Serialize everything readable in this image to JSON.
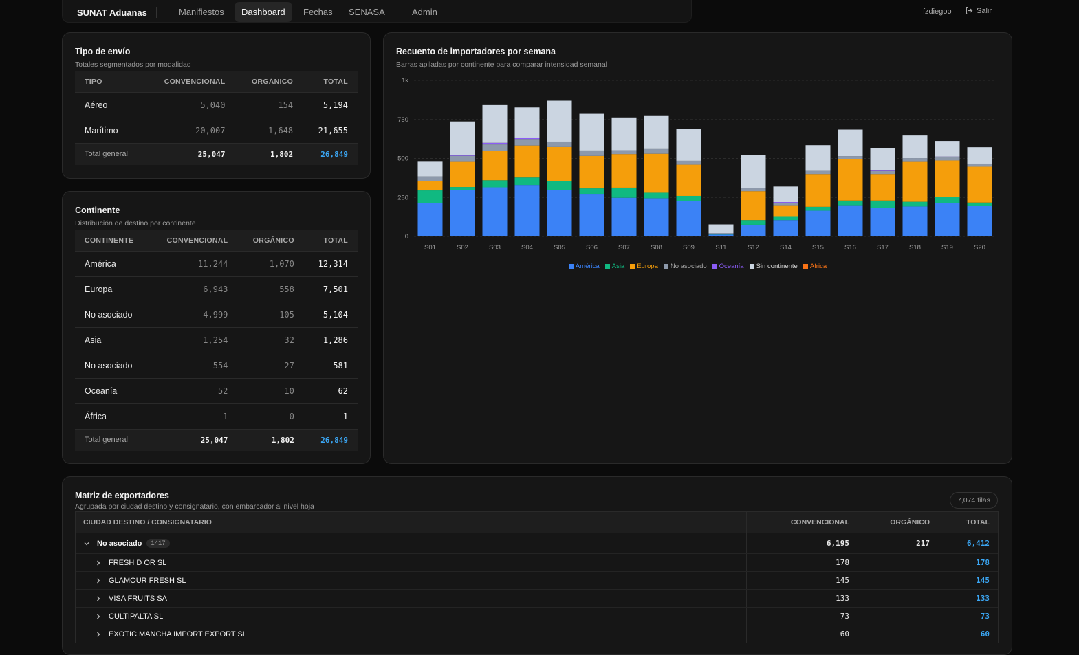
{
  "nav": {
    "brand": "SUNAT Aduanas",
    "items": [
      "Manifiestos",
      "Dashboard",
      "Fechas",
      "SENASA",
      "Admin"
    ],
    "active": "Dashboard",
    "user": "fzdiegoo",
    "logout": "Salir"
  },
  "shipping": {
    "title": "Tipo de envío",
    "subtitle": "Totales segmentados por modalidad",
    "headers": [
      "TIPO",
      "CONVENCIONAL",
      "ORGÁNICO",
      "TOTAL"
    ],
    "rows": [
      [
        "Aéreo",
        "5,040",
        "154",
        "5,194"
      ],
      [
        "Marítimo",
        "20,007",
        "1,648",
        "21,655"
      ]
    ],
    "total": [
      "Total general",
      "25,047",
      "1,802",
      "26,849"
    ]
  },
  "continent": {
    "title": "Continente",
    "subtitle": "Distribución de destino por continente",
    "headers": [
      "CONTINENTE",
      "CONVENCIONAL",
      "ORGÁNICO",
      "TOTAL"
    ],
    "rows": [
      [
        "América",
        "11,244",
        "1,070",
        "12,314"
      ],
      [
        "Europa",
        "6,943",
        "558",
        "7,501"
      ],
      [
        "No asociado",
        "4,999",
        "105",
        "5,104"
      ],
      [
        "Asia",
        "1,254",
        "32",
        "1,286"
      ],
      [
        "No asociado",
        "554",
        "27",
        "581"
      ],
      [
        "Oceanía",
        "52",
        "10",
        "62"
      ],
      [
        "África",
        "1",
        "0",
        "1"
      ]
    ],
    "total": [
      "Total general",
      "25,047",
      "1,802",
      "26,849"
    ]
  },
  "chart": {
    "title": "Recuento de importadores por semana",
    "subtitle": "Barras apiladas por continente para comparar intensidad semanal"
  },
  "chart_data": {
    "type": "bar",
    "stacked": true,
    "categories": [
      "S01",
      "S02",
      "S03",
      "S04",
      "S05",
      "S06",
      "S07",
      "S08",
      "S09",
      "S11",
      "S12",
      "S14",
      "S15",
      "S16",
      "S17",
      "S18",
      "S19",
      "S20"
    ],
    "ylim": [
      0,
      1000
    ],
    "yticks": [
      "0",
      "250",
      "500",
      "750",
      "1k"
    ],
    "grid": true,
    "legend_position": "bottom",
    "series": [
      {
        "name": "América",
        "color": "#3b82f6",
        "values": [
          215,
          297,
          315,
          330,
          298,
          273,
          248,
          245,
          225,
          12,
          75,
          105,
          165,
          200,
          185,
          192,
          212,
          197
        ]
      },
      {
        "name": "Asia",
        "color": "#10b981",
        "values": [
          80,
          20,
          45,
          48,
          55,
          35,
          65,
          35,
          35,
          3,
          30,
          25,
          25,
          30,
          45,
          30,
          40,
          20
        ]
      },
      {
        "name": "Europa",
        "color": "#f59e0b",
        "values": [
          60,
          165,
          190,
          205,
          220,
          208,
          215,
          250,
          200,
          2,
          185,
          70,
          210,
          265,
          170,
          260,
          235,
          230
        ]
      },
      {
        "name": "No asociado",
        "color": "#8d99ab",
        "values": [
          30,
          35,
          40,
          42,
          35,
          35,
          25,
          30,
          25,
          5,
          20,
          15,
          20,
          20,
          20,
          20,
          20,
          20
        ]
      },
      {
        "name": "Oceanía",
        "color": "#8b5cf6",
        "values": [
          0,
          5,
          10,
          5,
          0,
          0,
          0,
          0,
          0,
          0,
          0,
          5,
          0,
          0,
          5,
          0,
          5,
          0
        ]
      },
      {
        "name": "Sin continente",
        "color": "#cbd5e1",
        "values": [
          98,
          215,
          242,
          197,
          262,
          235,
          210,
          212,
          205,
          55,
          212,
          100,
          165,
          170,
          140,
          145,
          100,
          105
        ]
      },
      {
        "name": "África",
        "color": "#f97316",
        "values": [
          0,
          0,
          0,
          0,
          0,
          0,
          0,
          0,
          0,
          0,
          0,
          0,
          0,
          0,
          0,
          0,
          0,
          0
        ]
      }
    ]
  },
  "matrix": {
    "title": "Matriz de exportadores",
    "subtitle": "Agrupada por ciudad destino y consignatario, con embarcador al nivel hoja",
    "rows_badge": "7,074 filas",
    "headers": [
      "CIUDAD DESTINO / CONSIGNATARIO",
      "CONVENCIONAL",
      "ORGÁNICO",
      "TOTAL"
    ],
    "group": {
      "name": "No asociado",
      "count": "1417",
      "conv": "6,195",
      "org": "217",
      "total": "6,412"
    },
    "rows": [
      {
        "name": "FRESH D OR SL",
        "conv": "178",
        "org": "",
        "total": "178"
      },
      {
        "name": "GLAMOUR FRESH SL",
        "conv": "145",
        "org": "",
        "total": "145"
      },
      {
        "name": "VISA FRUITS SA",
        "conv": "133",
        "org": "",
        "total": "133"
      },
      {
        "name": "CULTIPALTA SL",
        "conv": "73",
        "org": "",
        "total": "73"
      },
      {
        "name": "EXOTIC MANCHA IMPORT EXPORT SL",
        "conv": "60",
        "org": "",
        "total": "60"
      }
    ]
  }
}
